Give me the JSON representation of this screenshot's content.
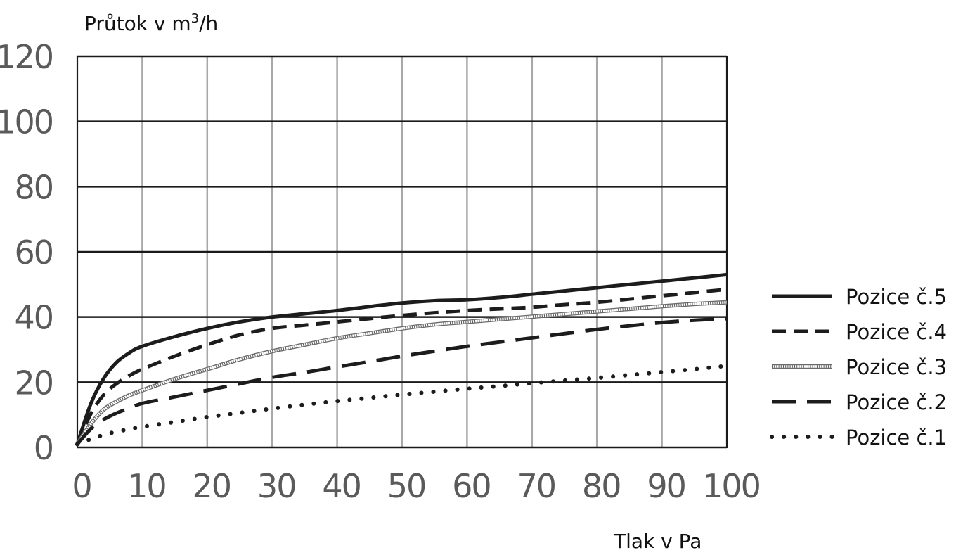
{
  "chart_data": {
    "type": "line",
    "title": "",
    "ylabel": "Průtok v m",
    "ylabel_sup": "3",
    "ylabel_suffix": "/h",
    "xlabel": "Tlak v Pa",
    "xlim": [
      0,
      100
    ],
    "ylim": [
      0,
      120
    ],
    "x_ticks": [
      0,
      10,
      20,
      30,
      40,
      50,
      60,
      70,
      80,
      90,
      100
    ],
    "y_ticks": [
      0,
      20,
      40,
      60,
      80,
      100,
      120
    ],
    "grid": true,
    "legend_position": "right",
    "series": [
      {
        "name": "Pozice č.5",
        "style": "solid",
        "x": [
          0,
          2,
          4,
          6,
          8,
          10,
          15,
          20,
          25,
          30,
          35,
          40,
          45,
          50,
          55,
          60,
          65,
          70,
          75,
          80,
          85,
          90,
          95,
          100
        ],
        "values": [
          1,
          13,
          21,
          26,
          29,
          31,
          34,
          36.5,
          38.5,
          40,
          41,
          42,
          43.2,
          44.3,
          45,
          45.3,
          46,
          47,
          48,
          49,
          50,
          51,
          52,
          53
        ]
      },
      {
        "name": "Pozice č.4",
        "style": "dashed",
        "x": [
          0,
          2,
          4,
          6,
          8,
          10,
          15,
          20,
          25,
          30,
          35,
          40,
          45,
          50,
          55,
          60,
          65,
          70,
          75,
          80,
          85,
          90,
          95,
          100
        ],
        "values": [
          1,
          10,
          16,
          19.5,
          22,
          24,
          28,
          31.5,
          34.5,
          36.5,
          37.5,
          38.5,
          39.5,
          40.5,
          41.3,
          42,
          42.5,
          43,
          43.8,
          44.5,
          45.5,
          46.5,
          47.5,
          48.5
        ]
      },
      {
        "name": "Pozice č.3",
        "style": "hatched",
        "x": [
          0,
          2,
          4,
          6,
          8,
          10,
          15,
          20,
          25,
          30,
          35,
          40,
          45,
          50,
          55,
          60,
          65,
          70,
          75,
          80,
          85,
          90,
          95,
          100
        ],
        "values": [
          1,
          7,
          11.5,
          14,
          16,
          17.5,
          21,
          24,
          27,
          29.5,
          31.5,
          33.5,
          35,
          36.5,
          37.7,
          38.5,
          39.3,
          40.1,
          40.9,
          41.7,
          42.5,
          43.3,
          44,
          44.5
        ]
      },
      {
        "name": "Pozice č.2",
        "style": "longdash",
        "x": [
          0,
          2,
          4,
          6,
          8,
          10,
          15,
          20,
          25,
          30,
          35,
          40,
          45,
          50,
          55,
          60,
          65,
          70,
          75,
          80,
          85,
          90,
          95,
          100
        ],
        "values": [
          1,
          5.5,
          8.5,
          10.5,
          12,
          13.5,
          15.5,
          17.5,
          19.5,
          21.5,
          23,
          24.7,
          26.3,
          28,
          29.5,
          31,
          32.3,
          33.6,
          34.9,
          36.2,
          37.3,
          38.3,
          39,
          39.5
        ]
      },
      {
        "name": "Pozice č.1",
        "style": "dotted",
        "x": [
          0,
          2,
          4,
          6,
          8,
          10,
          15,
          20,
          25,
          30,
          35,
          40,
          45,
          50,
          55,
          60,
          65,
          70,
          75,
          80,
          85,
          90,
          95,
          100
        ],
        "values": [
          1,
          2.5,
          3.8,
          4.8,
          5.6,
          6.3,
          7.8,
          9.3,
          10.6,
          11.9,
          13.1,
          14.2,
          15.2,
          16.2,
          17.1,
          18,
          18.8,
          19.7,
          20.5,
          21.3,
          22.2,
          23.1,
          24,
          25
        ]
      }
    ]
  }
}
